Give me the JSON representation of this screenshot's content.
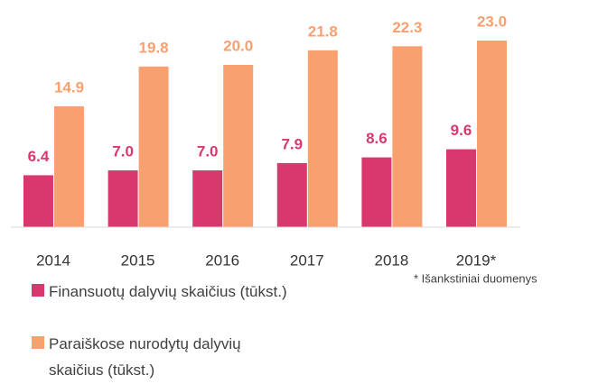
{
  "chart_data": {
    "type": "bar",
    "categories": [
      "2014",
      "2015",
      "2016",
      "2017",
      "2018",
      "2019*"
    ],
    "series": [
      {
        "name": "Finansuotų dalyvių skaičius (tūkst.)",
        "color": "#d9386e",
        "values": [
          6.4,
          7.0,
          7.0,
          7.9,
          8.6,
          9.6
        ],
        "value_labels": [
          "6.4",
          "7.0",
          "7.0",
          "7.9",
          "8.6",
          "9.6"
        ]
      },
      {
        "name": "Paraiškose nurodytų dalyvių skaičius (tūkst.)",
        "color": "#f9a070",
        "values": [
          14.9,
          19.8,
          20.0,
          21.8,
          22.3,
          23.0
        ],
        "value_labels": [
          "14.9",
          "19.8",
          "20.0",
          "21.8",
          "22.3",
          "23.0"
        ]
      }
    ],
    "ylim": [
      0,
      25
    ],
    "annotation": "* Išankstiniai  duomenys"
  }
}
